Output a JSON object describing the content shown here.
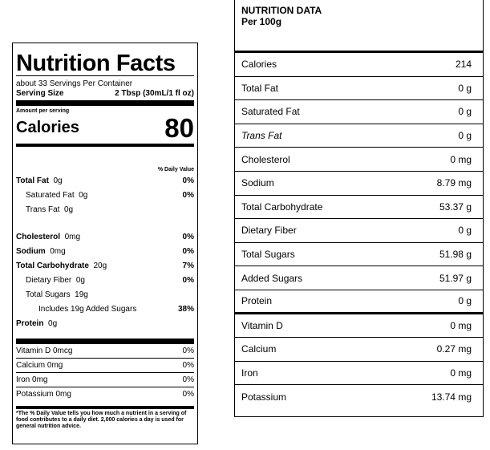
{
  "label": {
    "title": "Nutrition Facts",
    "servings": "about 33 Servings Per Container",
    "serving_size_label": "Serving Size",
    "serving_size_value": "2 Tbsp (30mL/1 fl oz)",
    "amount_per_serving": "Amount per serving",
    "calories_label": "Calories",
    "calories_value": "80",
    "daily_value_header": "% Daily Value",
    "rows": [
      {
        "name": "Total Fat",
        "amount": "0g",
        "dv": "0%"
      },
      {
        "name": "Saturated Fat",
        "amount": "0g",
        "dv": "0%"
      },
      {
        "name": "Trans Fat",
        "amount": "0g",
        "dv": ""
      },
      {
        "name": "Cholesterol",
        "amount": "0mg",
        "dv": "0%"
      },
      {
        "name": "Sodium",
        "amount": "0mg",
        "dv": "0%"
      },
      {
        "name": "Total Carbohydrate",
        "amount": "20g",
        "dv": "7%"
      },
      {
        "name": "Dietary Fiber",
        "amount": "0g",
        "dv": "0%"
      },
      {
        "name": "Total Sugars",
        "amount": "19g",
        "dv": ""
      },
      {
        "name": "Includes 19g Added Sugars",
        "amount": "",
        "dv": "38%"
      },
      {
        "name": "Protein",
        "amount": "0g",
        "dv": ""
      }
    ],
    "vitamins": [
      {
        "name": "Vitamin D 0mcg",
        "dv": "0%"
      },
      {
        "name": "Calcium 0mg",
        "dv": "0%"
      },
      {
        "name": "Iron 0mg",
        "dv": "0%"
      },
      {
        "name": "Potassium 0mg",
        "dv": "0%"
      }
    ],
    "footnote": "*The % Daily Value tells you how much a nutrient in a serving of food contributes to a daily diet. 2,000 calories a day is used for general nutrition advice."
  },
  "data_table": {
    "title": "NUTRITION DATA",
    "subtitle": "Per 100g",
    "rows": [
      {
        "name": "Calories",
        "value": "214"
      },
      {
        "name": "Total Fat",
        "value": "0 g"
      },
      {
        "name": "Saturated Fat",
        "value": "0 g"
      },
      {
        "name": "Trans Fat",
        "value": "0 g"
      },
      {
        "name": "Cholesterol",
        "value": "0 mg"
      },
      {
        "name": "Sodium",
        "value": "8.79 mg"
      },
      {
        "name": "Total Carbohydrate",
        "value": "53.37 g"
      },
      {
        "name": "Dietary Fiber",
        "value": "0 g"
      },
      {
        "name": "Total Sugars",
        "value": "51.98 g"
      },
      {
        "name": "Added Sugars",
        "value": "51.97 g"
      },
      {
        "name": "Protein",
        "value": "0 g"
      },
      {
        "name": "Vitamin D",
        "value": "0 mg"
      },
      {
        "name": "Calcium",
        "value": "0.27 mg"
      },
      {
        "name": "Iron",
        "value": "0 mg"
      },
      {
        "name": "Potassium",
        "value": "13.74 mg"
      }
    ]
  }
}
